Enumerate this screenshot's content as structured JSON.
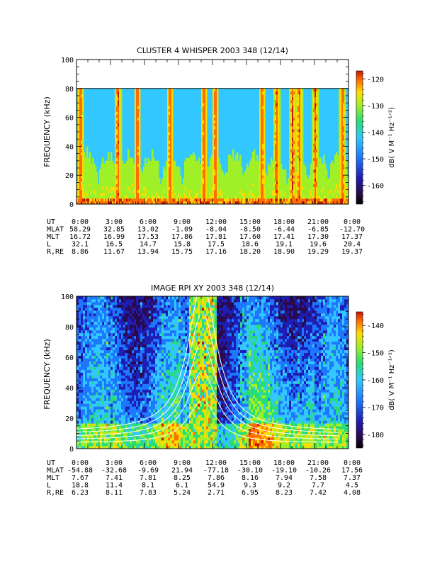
{
  "chart_data": [
    {
      "type": "heatmap",
      "title": "CLUSTER 4 WHISPER 2003 348 (12/14)",
      "ylabel": "FREQUENCY (kHz)",
      "ylim": [
        0,
        100
      ],
      "yticks": [
        "0",
        "20",
        "40",
        "60",
        "80",
        "100"
      ],
      "data_ymax": 80,
      "colorbar": {
        "label": "dB( V M⁻¹ Hz⁻¹ᐟ²)",
        "range": [
          -167,
          -117
        ],
        "ticks": [
          "-120",
          "-130",
          "-140",
          "-150",
          "-160"
        ]
      },
      "ephemeris": {
        "labels": [
          "UT",
          "MLAT",
          "MLT",
          "L",
          "R,RE"
        ],
        "UT": [
          "0:00",
          "3:00",
          "6:00",
          "9:00",
          "12:00",
          "15:00",
          "18:00",
          "21:00",
          "0:00"
        ],
        "MLAT": [
          "58.29",
          "32.85",
          "13.02",
          "-1.09",
          "-8.04",
          "-8.50",
          "-6.44",
          "-6.85",
          "-12.70"
        ],
        "MLT": [
          "16.72",
          "16.99",
          "17.53",
          "17.86",
          "17.81",
          "17.60",
          "17.41",
          "17.30",
          "17.37"
        ],
        "L": [
          "32.1",
          "16.5",
          "14.7",
          "15.8",
          "17.5",
          "18.6",
          "19.1",
          "19.6",
          "20.4"
        ],
        "R,RE": [
          "8.86",
          "11.67",
          "13.94",
          "15.75",
          "17.16",
          "18.20",
          "18.90",
          "19.29",
          "19.37"
        ]
      },
      "palette": [
        "#2a0a4a",
        "#1e1eb4",
        "#1e78ff",
        "#32c8ff",
        "#28dc78",
        "#a0f028",
        "#ffdc00",
        "#ff6e00",
        "#c81400"
      ],
      "background_level": "#32c8ff",
      "bursts_ut_hours": [
        0.3,
        3.6,
        5.3,
        8.2,
        11.2,
        12.2,
        16.3,
        17.6,
        19.0,
        19.6,
        21.0,
        23.4
      ]
    },
    {
      "type": "heatmap",
      "title": "IMAGE RPI XY 2003 348 (12/14)",
      "ylabel": "FREQUENCY (kHz)",
      "ylim": [
        0,
        100
      ],
      "yticks": [
        "0",
        "20",
        "40",
        "60",
        "80",
        "100"
      ],
      "colorbar": {
        "label": "dB( V M⁻¹ Hz⁻¹ᐟ²)",
        "range": [
          -185,
          -135
        ],
        "ticks": [
          "-140",
          "-150",
          "-160",
          "-170",
          "-180"
        ]
      },
      "ephemeris": {
        "labels": [
          "UT",
          "MLAT",
          "MLT",
          "L",
          "R,RE"
        ],
        "UT": [
          "0:00",
          "3:00",
          "6:00",
          "9:00",
          "12:00",
          "15:00",
          "18:00",
          "21:00",
          "0:00"
        ],
        "MLAT": [
          "-54.88",
          "-32.68",
          "-9.69",
          "21.94",
          "-77.18",
          "-30.10",
          "-19.10",
          "-10.26",
          "17.56"
        ],
        "MLT": [
          "7.67",
          "7.41",
          "7.81",
          "8.25",
          "7.86",
          "8.16",
          "7.94",
          "7.58",
          "7.37"
        ],
        "L": [
          "18.8",
          "11.4",
          "8.1",
          "6.1",
          "54.9",
          "9.3",
          "9.2",
          "7.7",
          "4.5"
        ],
        "R,RE": [
          "6.23",
          "8.11",
          "7.83",
          "5.24",
          "2.71",
          "6.95",
          "8.23",
          "7.42",
          "4.08"
        ]
      },
      "palette": [
        "#2a0a4a",
        "#1e1eb4",
        "#1e78ff",
        "#32c8ff",
        "#28dc78",
        "#a0f028",
        "#ffdc00",
        "#ff6e00",
        "#c81400"
      ],
      "perigee_ut_hours": 11.1,
      "overlay_curve_color": "#ffffff"
    }
  ]
}
